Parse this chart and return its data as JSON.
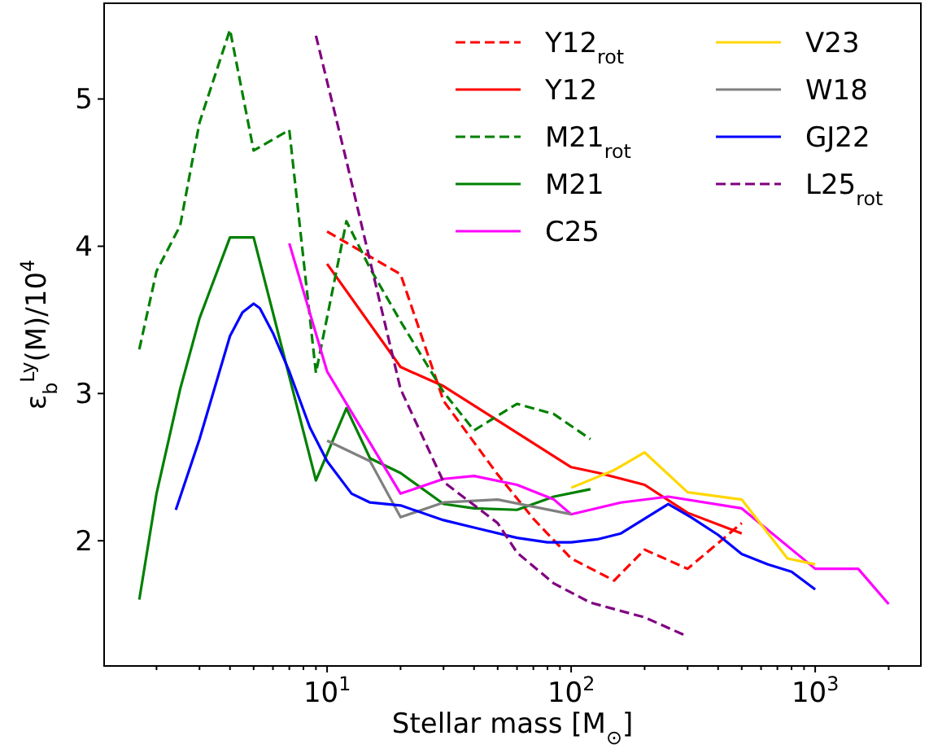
{
  "chart_data": {
    "type": "line",
    "xlabel": "Stellar mass [M$_{⊙}$]",
    "ylabel": "ε$_{b}$$^{Ly}$(M)/10$^{4}$",
    "log": "x",
    "legend": "top right",
    "grid": false,
    "xlim": [
      1.22,
      2710
    ],
    "ylim": [
      1.15,
      5.65
    ],
    "xticks": [
      {
        "value": 2,
        "label": null
      },
      {
        "value": 3,
        "label": null
      },
      {
        "value": 4,
        "label": null
      },
      {
        "value": 5,
        "label": null
      },
      {
        "value": 6,
        "label": null
      },
      {
        "value": 7,
        "label": null
      },
      {
        "value": 8,
        "label": null
      },
      {
        "value": 9,
        "label": null
      },
      {
        "value": 10,
        "label": "10$^{1}$"
      },
      {
        "value": 20,
        "label": null
      },
      {
        "value": 30,
        "label": null
      },
      {
        "value": 40,
        "label": null
      },
      {
        "value": 50,
        "label": null
      },
      {
        "value": 60,
        "label": null
      },
      {
        "value": 70,
        "label": null
      },
      {
        "value": 80,
        "label": null
      },
      {
        "value": 90,
        "label": null
      },
      {
        "value": 100,
        "label": "10$^{2}$"
      },
      {
        "value": 200,
        "label": null
      },
      {
        "value": 300,
        "label": null
      },
      {
        "value": 400,
        "label": null
      },
      {
        "value": 500,
        "label": null
      },
      {
        "value": 600,
        "label": null
      },
      {
        "value": 700,
        "label": null
      },
      {
        "value": 800,
        "label": null
      },
      {
        "value": 900,
        "label": null
      },
      {
        "value": 1000,
        "label": "10$^{3}$"
      },
      {
        "value": 2000,
        "label": null
      }
    ],
    "yticks": [
      2,
      3,
      4,
      5
    ],
    "series": [
      {
        "name": "Y12$_{rot}$",
        "color": "#ff0000",
        "line_style": "dashed",
        "x": [
          10,
          20,
          30,
          50,
          70,
          100,
          150,
          200,
          300,
          500
        ],
        "values": [
          4.1,
          3.81,
          2.95,
          2.45,
          2.15,
          1.88,
          1.73,
          1.94,
          1.81,
          2.12
        ]
      },
      {
        "name": "Y12",
        "color": "#ff0000",
        "line_style": "solid",
        "x": [
          10,
          20,
          30,
          100,
          130,
          200,
          300,
          500
        ],
        "values": [
          3.88,
          3.18,
          3.05,
          2.5,
          2.46,
          2.38,
          2.19,
          2.05
        ]
      },
      {
        "name": "M21$_{rot}$",
        "color": "#008000",
        "line_style": "dashed",
        "x": [
          1.7,
          2,
          2.5,
          3,
          4,
          5,
          7,
          9,
          12,
          15,
          20,
          30,
          40,
          60,
          85,
          120
        ],
        "values": [
          3.3,
          3.83,
          4.14,
          4.84,
          5.47,
          4.65,
          4.79,
          3.14,
          4.17,
          3.85,
          3.49,
          3.01,
          2.75,
          2.93,
          2.86,
          2.69
        ]
      },
      {
        "name": "M21",
        "color": "#008000",
        "line_style": "solid",
        "x": [
          1.7,
          2,
          2.5,
          3,
          4,
          5,
          9,
          12,
          15,
          20,
          30,
          40,
          60,
          85,
          120
        ],
        "values": [
          1.6,
          2.32,
          3.03,
          3.51,
          4.06,
          4.06,
          2.41,
          2.9,
          2.56,
          2.46,
          2.25,
          2.22,
          2.21,
          2.3,
          2.35
        ]
      },
      {
        "name": "C25",
        "color": "#ff00ff",
        "line_style": "solid",
        "x": [
          7,
          10,
          20,
          30,
          40,
          60,
          85,
          100,
          160,
          250,
          500,
          1000,
          1500,
          2000
        ],
        "values": [
          4.02,
          3.15,
          2.32,
          2.42,
          2.44,
          2.38,
          2.28,
          2.18,
          2.26,
          2.3,
          2.22,
          1.81,
          1.81,
          1.57
        ]
      },
      {
        "name": "V23",
        "color": "#ffd700",
        "line_style": "solid",
        "x": [
          100,
          150,
          200,
          300,
          500,
          770,
          1000
        ],
        "values": [
          2.36,
          2.48,
          2.6,
          2.33,
          2.28,
          1.88,
          1.84
        ]
      },
      {
        "name": "W18",
        "color": "#808080",
        "line_style": "solid",
        "x": [
          10,
          15,
          20,
          30,
          50,
          100
        ],
        "values": [
          2.68,
          2.54,
          2.16,
          2.26,
          2.28,
          2.18
        ]
      },
      {
        "name": "GJ22",
        "color": "#0000ff",
        "line_style": "solid",
        "x": [
          2.4,
          3,
          4,
          4.5,
          5,
          5.3,
          6,
          7,
          8.5,
          10,
          12.6,
          15,
          20,
          30,
          40,
          60,
          80,
          100,
          128,
          160,
          250,
          310,
          400,
          500,
          640,
          800,
          1000
        ],
        "values": [
          2.21,
          2.69,
          3.39,
          3.55,
          3.61,
          3.58,
          3.41,
          3.15,
          2.77,
          2.54,
          2.32,
          2.26,
          2.24,
          2.14,
          2.09,
          2.02,
          1.99,
          1.99,
          2.01,
          2.05,
          2.25,
          2.16,
          2.04,
          1.91,
          1.84,
          1.79,
          1.67
        ]
      },
      {
        "name": "L25$_{rot}$",
        "color": "#800080",
        "line_style": "dashed",
        "x": [
          9,
          12,
          15,
          20,
          30,
          50,
          60,
          85,
          120,
          200,
          300
        ],
        "values": [
          5.43,
          4.58,
          3.9,
          3.03,
          2.4,
          2.12,
          1.92,
          1.71,
          1.58,
          1.48,
          1.35
        ]
      }
    ]
  }
}
